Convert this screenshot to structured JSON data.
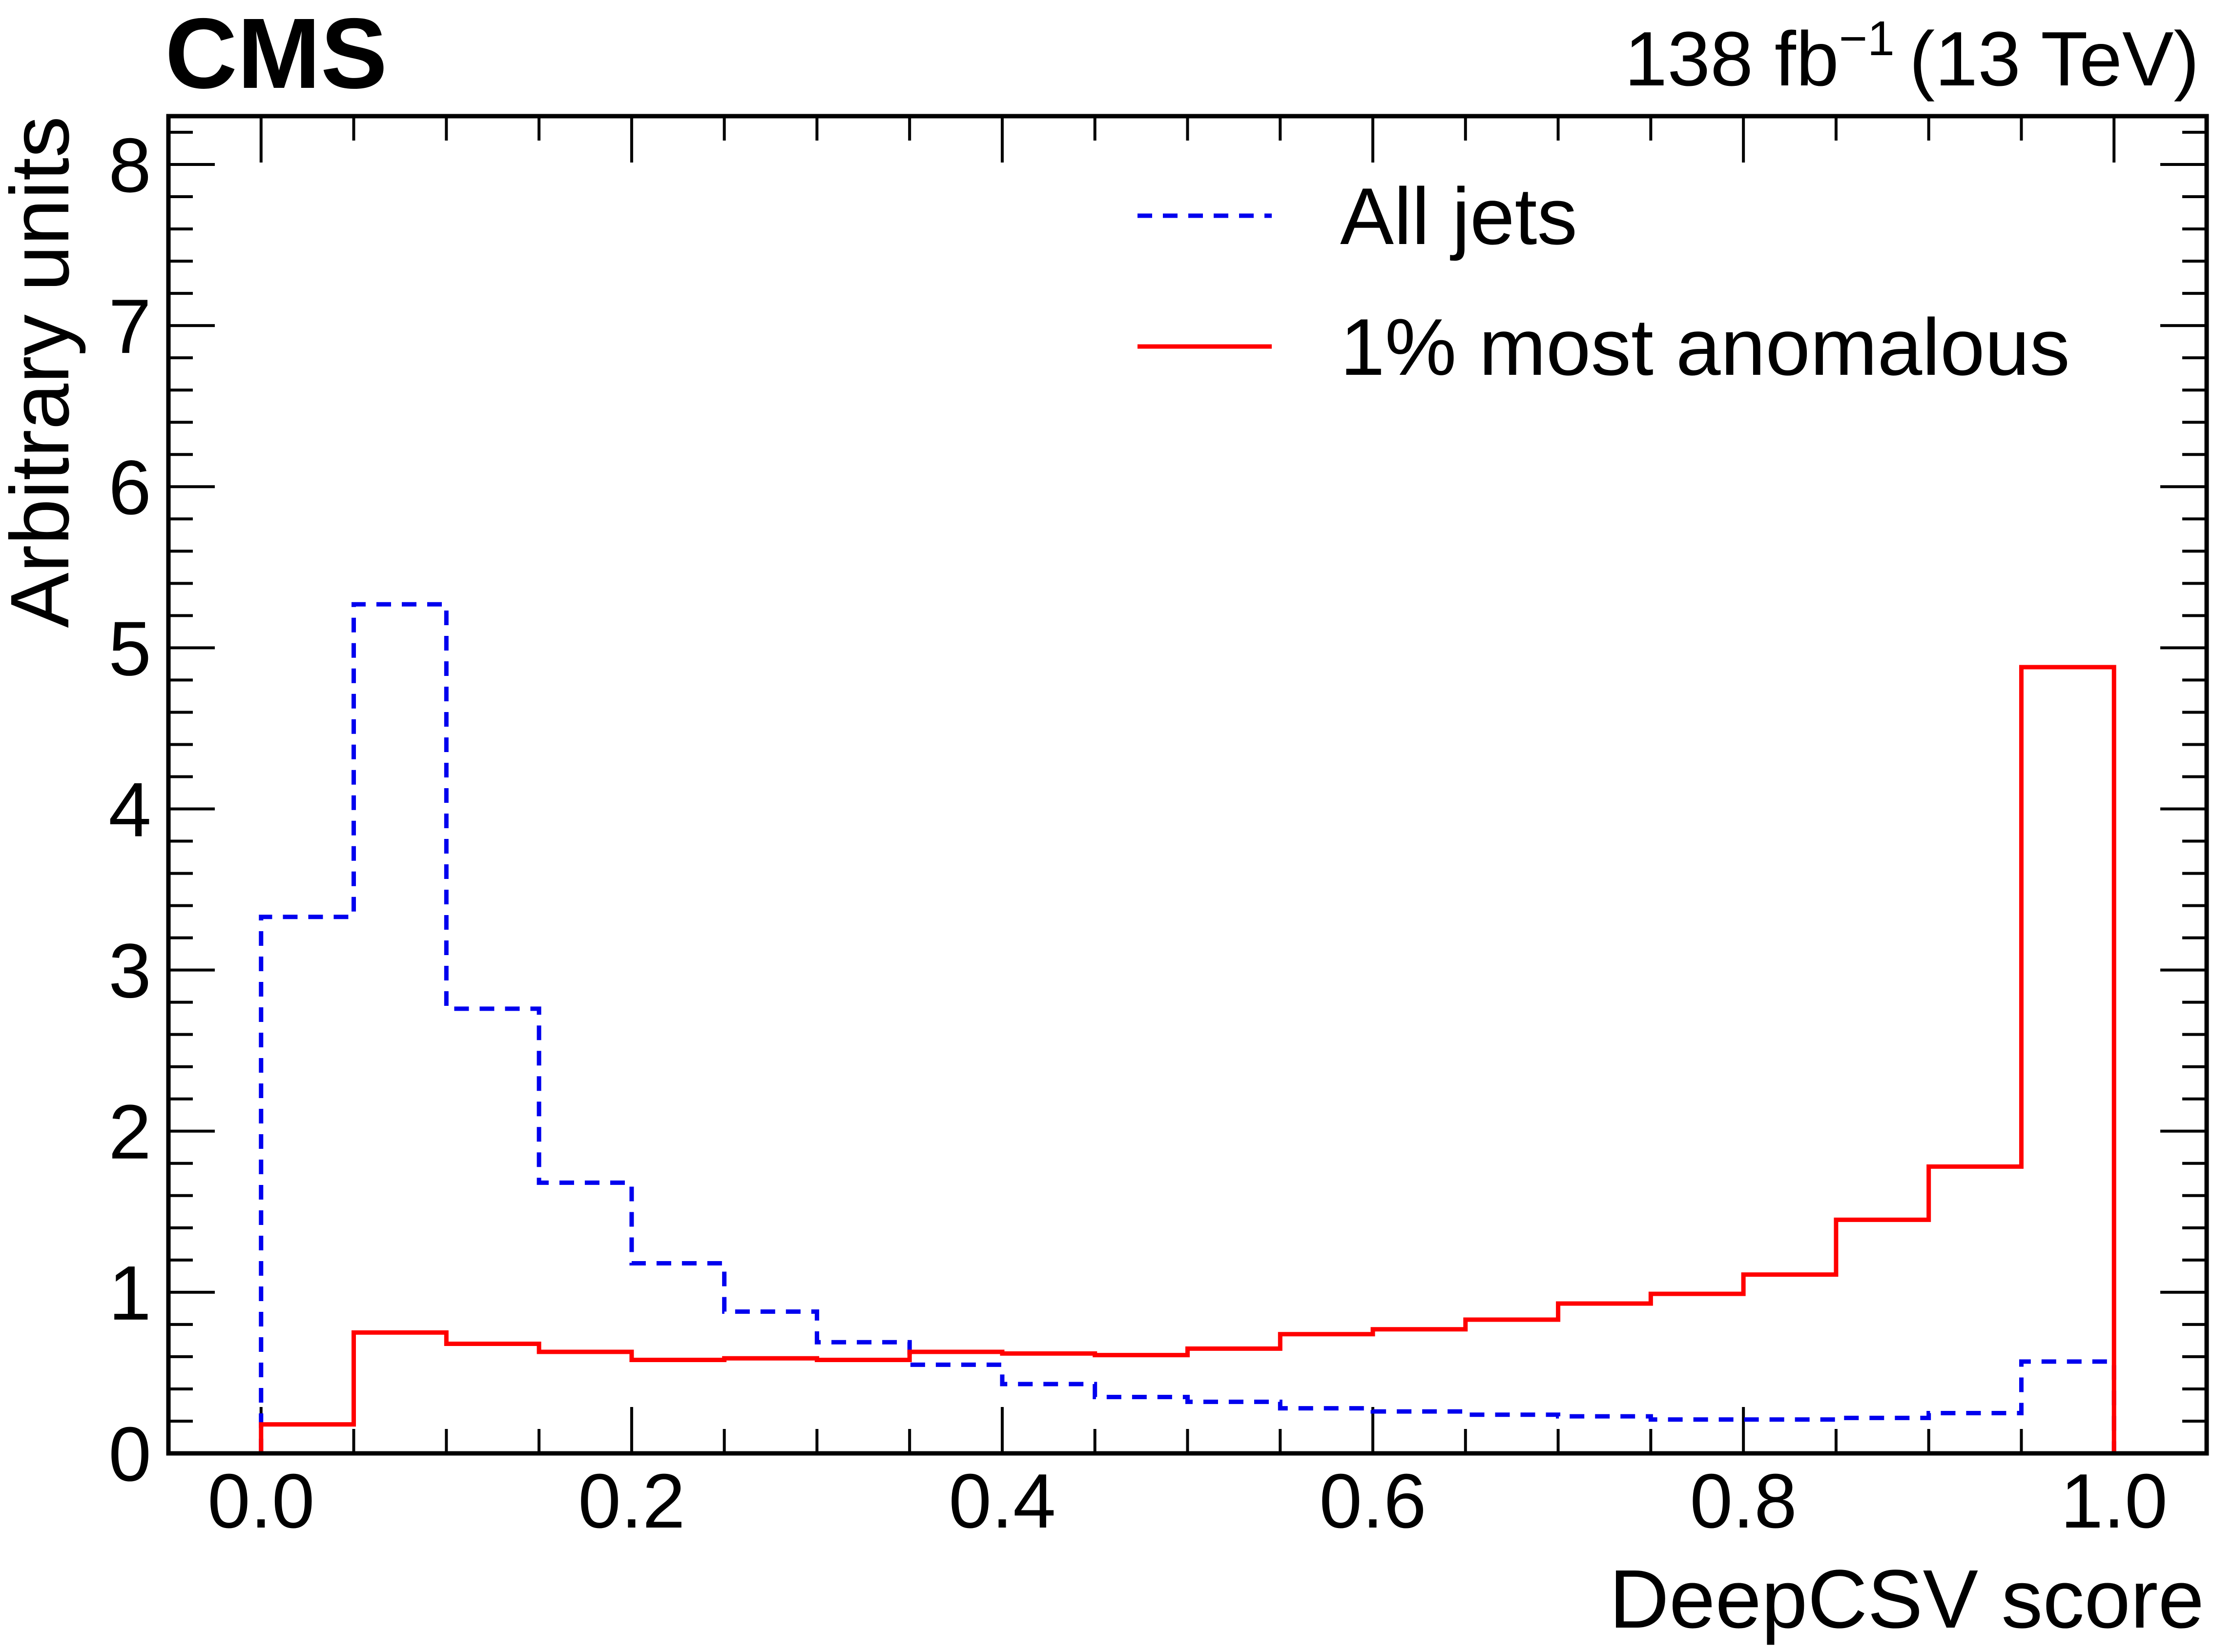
{
  "header": {
    "experiment": "CMS",
    "lumi_value": "138 fb",
    "lumi_exponent": "−1",
    "energy": "(13 TeV)"
  },
  "chart_data": {
    "type": "histogram",
    "xlabel": "DeepCSV score",
    "ylabel": "Arbitrary units",
    "xlim": [
      -0.05,
      1.05
    ],
    "ylim": [
      0,
      8.3
    ],
    "x_ticks": [
      0.0,
      0.2,
      0.4,
      0.6,
      0.8,
      1.0
    ],
    "x_tick_labels": [
      "0.0",
      "0.2",
      "0.4",
      "0.6",
      "0.8",
      "1.0"
    ],
    "y_ticks": [
      0,
      1,
      2,
      3,
      4,
      5,
      6,
      7,
      8
    ],
    "y_tick_labels": [
      "0",
      "1",
      "2",
      "3",
      "4",
      "5",
      "6",
      "7",
      "8"
    ],
    "grid": false,
    "legend_position": "top-right",
    "bin_edges": [
      0.0,
      0.05,
      0.1,
      0.15,
      0.2,
      0.25,
      0.3,
      0.35,
      0.4,
      0.45,
      0.5,
      0.55,
      0.6,
      0.65,
      0.7,
      0.75,
      0.8,
      0.85,
      0.9,
      0.95,
      1.0
    ],
    "series": [
      {
        "name": "All jets",
        "style": "dashed",
        "color": "#0000ee",
        "values": [
          3.33,
          5.27,
          2.76,
          1.68,
          1.18,
          0.88,
          0.69,
          0.55,
          0.43,
          0.35,
          0.32,
          0.28,
          0.26,
          0.24,
          0.23,
          0.21,
          0.21,
          0.22,
          0.25,
          0.57
        ]
      },
      {
        "name": "1% most anomalous",
        "style": "solid",
        "color": "#ff0000",
        "values": [
          0.18,
          0.75,
          0.68,
          0.63,
          0.58,
          0.59,
          0.58,
          0.63,
          0.62,
          0.61,
          0.65,
          0.74,
          0.77,
          0.83,
          0.93,
          0.99,
          1.11,
          1.45,
          1.78,
          4.88
        ]
      }
    ]
  }
}
